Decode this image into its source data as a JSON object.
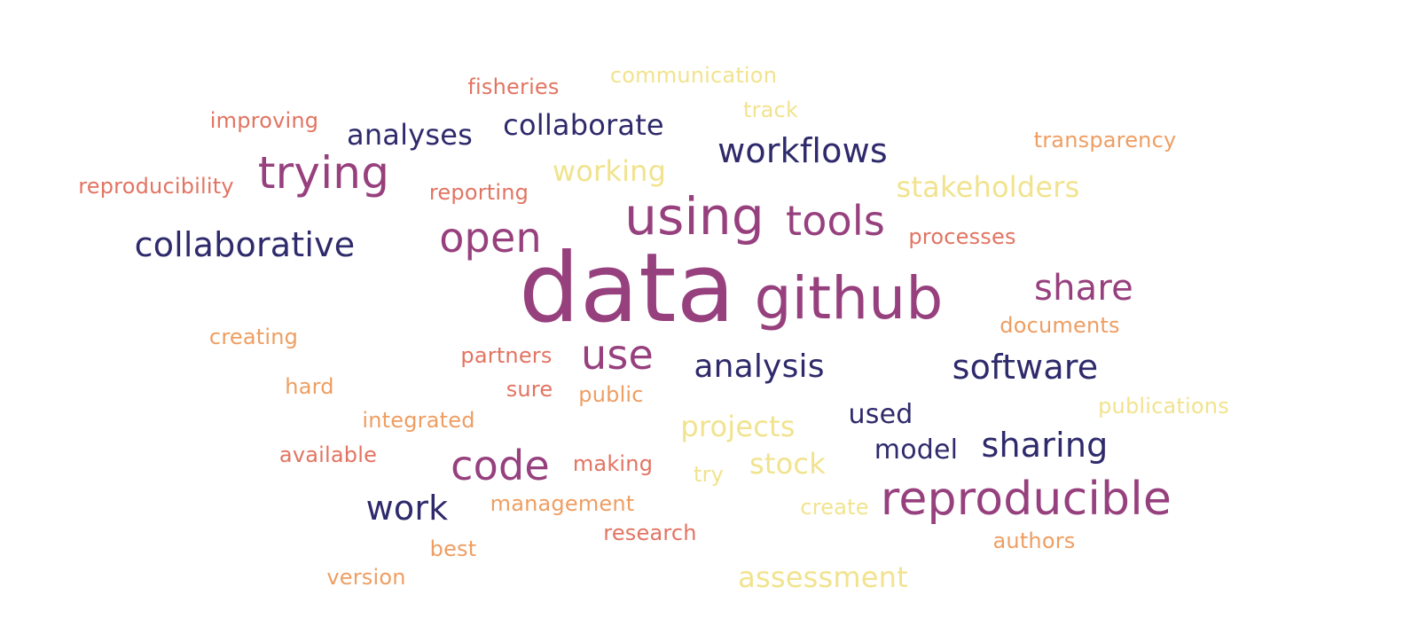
{
  "colors": {
    "dark_navy": "#2E2A6B",
    "plum": "#97407E",
    "salmon": "#E27462",
    "orange": "#EE9E62",
    "pale_yellow": "#F1E38E"
  },
  "words": [
    {
      "text": "data",
      "color": "plum"
    },
    {
      "text": "github",
      "color": "plum"
    },
    {
      "text": "using",
      "color": "plum"
    },
    {
      "text": "reproducible",
      "color": "plum"
    },
    {
      "text": "trying",
      "color": "plum"
    },
    {
      "text": "tools",
      "color": "plum"
    },
    {
      "text": "open",
      "color": "plum"
    },
    {
      "text": "code",
      "color": "plum"
    },
    {
      "text": "use",
      "color": "plum"
    },
    {
      "text": "share",
      "color": "plum"
    },
    {
      "text": "collaborative",
      "color": "dark_navy"
    },
    {
      "text": "workflows",
      "color": "dark_navy"
    },
    {
      "text": "analysis",
      "color": "dark_navy"
    },
    {
      "text": "software",
      "color": "dark_navy"
    },
    {
      "text": "sharing",
      "color": "dark_navy"
    },
    {
      "text": "work",
      "color": "dark_navy"
    },
    {
      "text": "collaborate",
      "color": "dark_navy"
    },
    {
      "text": "analyses",
      "color": "dark_navy"
    },
    {
      "text": "model",
      "color": "dark_navy"
    },
    {
      "text": "used",
      "color": "dark_navy"
    },
    {
      "text": "stakeholders",
      "color": "pale_yellow"
    },
    {
      "text": "working",
      "color": "pale_yellow"
    },
    {
      "text": "projects",
      "color": "pale_yellow"
    },
    {
      "text": "stock",
      "color": "pale_yellow"
    },
    {
      "text": "assessment",
      "color": "pale_yellow"
    },
    {
      "text": "communication",
      "color": "pale_yellow"
    },
    {
      "text": "track",
      "color": "pale_yellow"
    },
    {
      "text": "publications",
      "color": "pale_yellow"
    },
    {
      "text": "create",
      "color": "pale_yellow"
    },
    {
      "text": "try",
      "color": "pale_yellow"
    },
    {
      "text": "fisheries",
      "color": "salmon"
    },
    {
      "text": "improving",
      "color": "salmon"
    },
    {
      "text": "reproducibility",
      "color": "salmon"
    },
    {
      "text": "reporting",
      "color": "salmon"
    },
    {
      "text": "processes",
      "color": "salmon"
    },
    {
      "text": "partners",
      "color": "salmon"
    },
    {
      "text": "sure",
      "color": "salmon"
    },
    {
      "text": "available",
      "color": "salmon"
    },
    {
      "text": "making",
      "color": "salmon"
    },
    {
      "text": "research",
      "color": "salmon"
    },
    {
      "text": "transparency",
      "color": "orange"
    },
    {
      "text": "creating",
      "color": "orange"
    },
    {
      "text": "documents",
      "color": "orange"
    },
    {
      "text": "hard",
      "color": "orange"
    },
    {
      "text": "public",
      "color": "orange"
    },
    {
      "text": "integrated",
      "color": "orange"
    },
    {
      "text": "management",
      "color": "orange"
    },
    {
      "text": "best",
      "color": "orange"
    },
    {
      "text": "authors",
      "color": "orange"
    },
    {
      "text": "version",
      "color": "orange"
    }
  ]
}
